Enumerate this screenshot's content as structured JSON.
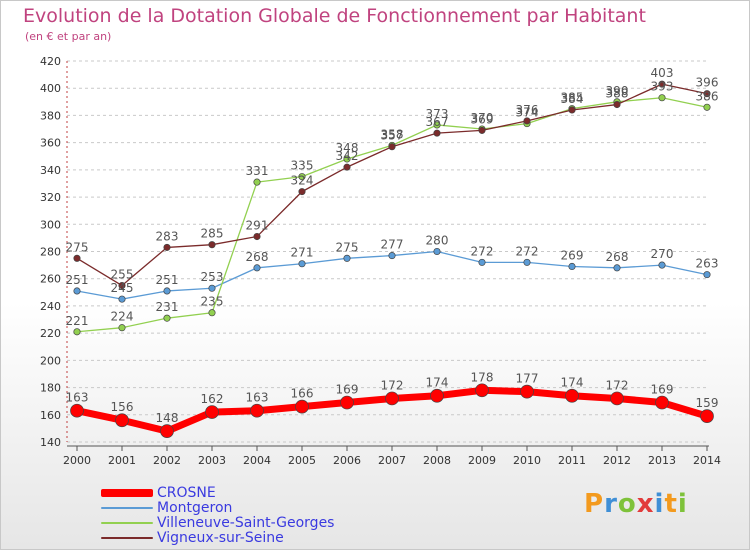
{
  "header": {
    "title": "Evolution de la Dotation Globale de Fonctionnement par Habitant",
    "subtitle": "(en € et par an)"
  },
  "logo": {
    "text": "Proxiti"
  },
  "chart_data": {
    "type": "line",
    "title": "Evolution de la Dotation Globale de Fonctionnement par Habitant",
    "subtitle": "(en € et par an)",
    "x": [
      2000,
      2001,
      2002,
      2003,
      2004,
      2005,
      2006,
      2007,
      2008,
      2009,
      2010,
      2011,
      2012,
      2013,
      2014
    ],
    "ylim": [
      140,
      420
    ],
    "yticks": [
      140,
      160,
      180,
      200,
      220,
      240,
      260,
      280,
      300,
      320,
      340,
      360,
      380,
      400,
      420
    ],
    "grid": "horizontal dashed",
    "legend_position": "bottom-left",
    "series": [
      {
        "name": "CROSNE",
        "color": "#ff0000",
        "values": [
          163,
          156,
          148,
          162,
          163,
          166,
          169,
          172,
          174,
          178,
          177,
          174,
          172,
          169,
          159
        ]
      },
      {
        "name": "Montgeron",
        "color": "#5b9bd5",
        "values": [
          251,
          245,
          251,
          253,
          268,
          271,
          275,
          277,
          280,
          272,
          272,
          269,
          268,
          270,
          263
        ]
      },
      {
        "name": "Villeneuve-Saint-Georges",
        "color": "#92d050",
        "values": [
          221,
          224,
          231,
          235,
          331,
          335,
          348,
          358,
          373,
          370,
          374,
          385,
          390,
          393,
          386
        ]
      },
      {
        "name": "Vigneux-sur-Seine",
        "color": "#7b2b2b",
        "values": [
          275,
          255,
          283,
          285,
          291,
          324,
          342,
          357,
          367,
          369,
          376,
          384,
          388,
          403,
          396
        ]
      }
    ]
  }
}
